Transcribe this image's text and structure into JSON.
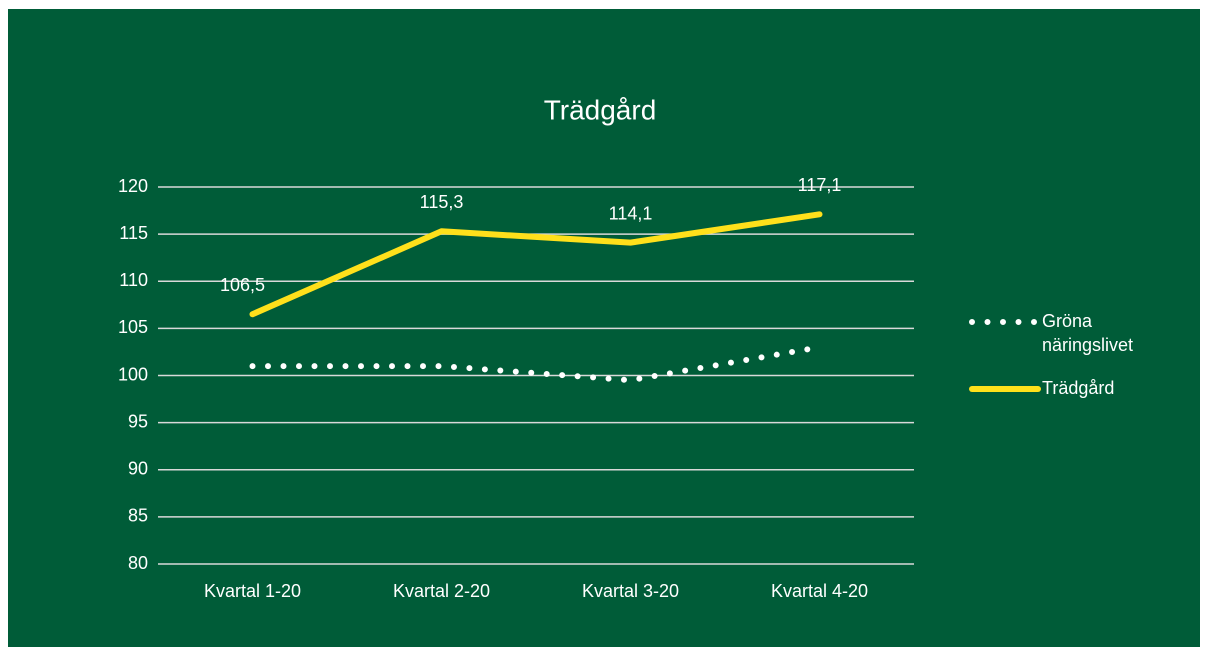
{
  "chart_data": {
    "type": "line",
    "title": "Trädgård",
    "categories": [
      "Kvartal 1-20",
      "Kvartal 2-20",
      "Kvartal 3-20",
      "Kvartal 4-20"
    ],
    "series": [
      {
        "name": "Gröna näringslivet",
        "color": "#ffffff",
        "style": "dotted",
        "values": [
          101,
          101,
          99.5,
          103
        ]
      },
      {
        "name": "Trädgård",
        "color": "#ffe01b",
        "style": "solid",
        "values": [
          106.5,
          115.3,
          114.1,
          117.1
        ],
        "value_labels": [
          "106,5",
          "115,3",
          "114,1",
          "117,1"
        ]
      }
    ],
    "ylim": [
      80,
      120
    ],
    "yticks": [
      80,
      85,
      90,
      95,
      100,
      105,
      110,
      115,
      120
    ],
    "grid": true,
    "legend": "right"
  }
}
